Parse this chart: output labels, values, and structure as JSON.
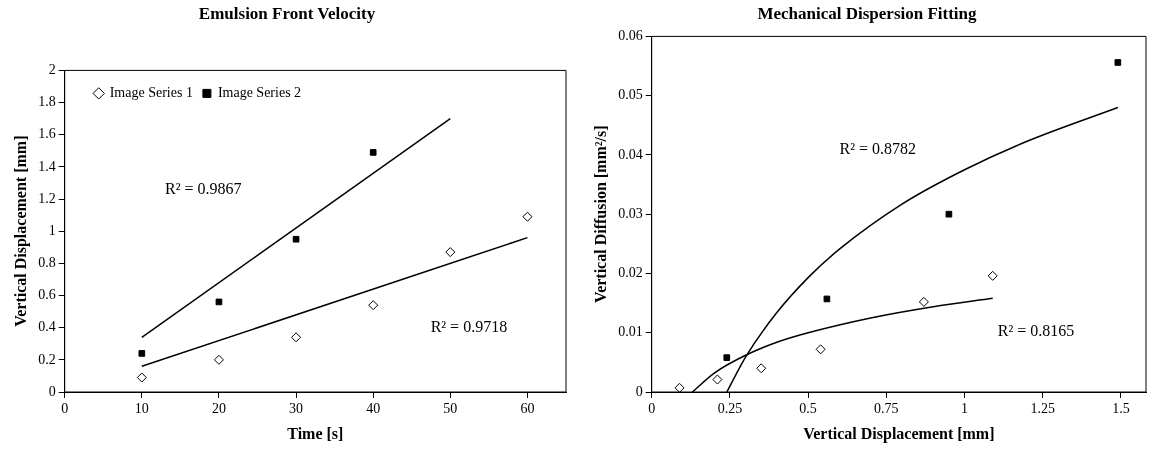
{
  "chart_data": [
    {
      "type": "scatter",
      "title": "Emulsion Front Velocity",
      "xlabel": "Time [s]",
      "ylabel": "Vertical Displacement [mm]",
      "xlim": [
        0,
        65
      ],
      "xticks": [
        0,
        10,
        20,
        30,
        40,
        50,
        60
      ],
      "ylim": [
        0,
        2
      ],
      "yticks": [
        0,
        0.2,
        0.4,
        0.6,
        0.8,
        1,
        1.2,
        1.4,
        1.6,
        1.8,
        2
      ],
      "grid": false,
      "legend": "top left",
      "series": [
        {
          "name": "Image Series 1",
          "color": "#000000",
          "marker": "diamond",
          "x": [
            10,
            20,
            30,
            40,
            50,
            60
          ],
          "values": [
            0.09,
            0.2,
            0.34,
            0.54,
            0.87,
            1.09
          ]
        },
        {
          "name": "Image Series 2",
          "color": "#000000",
          "marker": "square",
          "x": [
            10,
            20,
            30,
            40
          ],
          "values": [
            0.24,
            0.56,
            0.95,
            1.49
          ]
        },
        {
          "type": "line",
          "color": "#000000",
          "marker": "none",
          "x": [
            10,
            60
          ],
          "values": [
            0.16,
            0.96
          ]
        },
        {
          "type": "line",
          "color": "#000000",
          "marker": "none",
          "x": [
            10,
            50
          ],
          "values": [
            0.34,
            1.7
          ]
        }
      ],
      "annotations": [
        "R² = 0.9867",
        "R² = 0.9718"
      ]
    },
    {
      "type": "scatter",
      "title": "Mechanical Dispersion Fitting",
      "xlabel": "Vertical Displacement [mm]",
      "ylabel": "Vertical Diffusion [mm²/s]",
      "xlim": [
        0,
        1.58
      ],
      "xticks": [
        0,
        0.25,
        0.5,
        0.75,
        1,
        1.25,
        1.5
      ],
      "ylim": [
        0,
        0.06
      ],
      "yticks": [
        0,
        0.01,
        0.02,
        0.03,
        0.04,
        0.05,
        0.06
      ],
      "grid": false,
      "series": [
        {
          "color": "#000000",
          "marker": "diamond",
          "x": [
            0.089,
            0.21,
            0.35,
            0.54,
            0.87,
            1.09
          ],
          "values": [
            0.0007,
            0.0021,
            0.004,
            0.0072,
            0.0152,
            0.0196
          ]
        },
        {
          "color": "#000000",
          "marker": "square",
          "x": [
            0.24,
            0.56,
            0.95,
            1.49
          ],
          "values": [
            0.0058,
            0.0157,
            0.03,
            0.0556
          ]
        },
        {
          "type": "line",
          "color": "#000000",
          "marker": "none",
          "x": [
            0.13,
            0.2,
            0.3,
            0.4,
            0.5,
            0.7,
            0.9,
            1.09
          ],
          "values": [
            0,
            0.0032,
            0.0062,
            0.0084,
            0.01,
            0.0125,
            0.0144,
            0.0158
          ]
        },
        {
          "type": "line",
          "color": "#000000",
          "marker": "none",
          "x": [
            0.24,
            0.3,
            0.4,
            0.5,
            0.6,
            0.8,
            1.0,
            1.2,
            1.49
          ],
          "values": [
            0,
            0.0059,
            0.0134,
            0.0193,
            0.0241,
            0.0317,
            0.0375,
            0.0423,
            0.048
          ]
        }
      ],
      "annotations": [
        "R² = 0.8782",
        "R² = 0.8165"
      ]
    }
  ]
}
